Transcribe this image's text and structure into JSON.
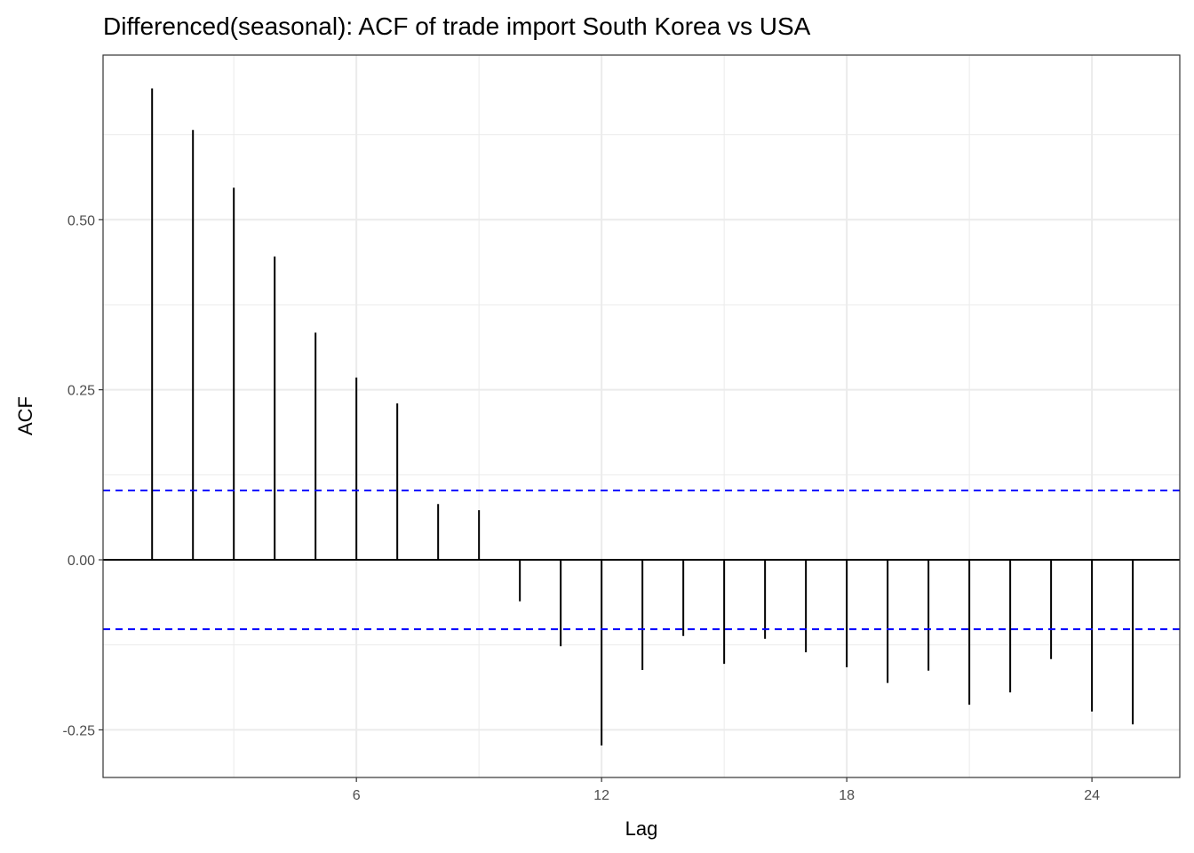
{
  "chart_data": {
    "type": "bar",
    "title": "Differenced(seasonal): ACF of trade import South Korea vs USA",
    "xlabel": "Lag",
    "ylabel": "ACF",
    "x": [
      1,
      2,
      3,
      4,
      5,
      6,
      7,
      8,
      9,
      10,
      11,
      12,
      13,
      14,
      15,
      16,
      17,
      18,
      19,
      20,
      21,
      22,
      23,
      24,
      25
    ],
    "values": [
      0.693,
      0.632,
      0.547,
      0.446,
      0.334,
      0.268,
      0.23,
      0.082,
      0.073,
      -0.061,
      -0.127,
      -0.273,
      -0.162,
      -0.112,
      -0.153,
      -0.116,
      -0.136,
      -0.158,
      -0.181,
      -0.163,
      -0.213,
      -0.195,
      -0.146,
      -0.223,
      -0.242
    ],
    "confidence_bound": 0.102,
    "xlim": [
      -0.2,
      26.15
    ],
    "ylim": [
      -0.32,
      0.742
    ],
    "x_ticks": [
      6,
      12,
      18,
      24
    ],
    "x_tick_labels": [
      "6",
      "12",
      "18",
      "24"
    ],
    "y_ticks": [
      -0.25,
      0,
      0.25,
      0.5
    ],
    "y_tick_labels": [
      "-0.25",
      "0.00",
      "0.25",
      "0.50"
    ],
    "grid": true,
    "colors": {
      "bars": "#000000",
      "confidence": "#0000ff",
      "grid": "#ebebeb"
    }
  }
}
